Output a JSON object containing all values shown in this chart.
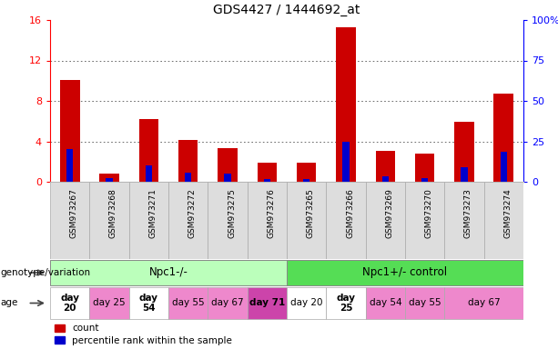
{
  "title": "GDS4427 / 1444692_at",
  "samples": [
    "GSM973267",
    "GSM973268",
    "GSM973271",
    "GSM973272",
    "GSM973275",
    "GSM973276",
    "GSM973265",
    "GSM973266",
    "GSM973269",
    "GSM973270",
    "GSM973273",
    "GSM973274"
  ],
  "count_values": [
    10.1,
    0.8,
    6.2,
    4.1,
    3.3,
    1.9,
    1.9,
    15.3,
    3.1,
    2.8,
    5.9,
    8.7
  ],
  "percentile_values": [
    20.5,
    2.5,
    10.0,
    5.6,
    5.3,
    1.9,
    1.6,
    25.0,
    3.1,
    2.5,
    8.75,
    18.75
  ],
  "ylim_left": [
    0,
    16
  ],
  "ylim_right": [
    0,
    100
  ],
  "yticks_left": [
    0,
    4,
    8,
    12,
    16
  ],
  "ytick_labels_left": [
    "0",
    "4",
    "8",
    "12",
    "16"
  ],
  "yticks_right": [
    0,
    25,
    50,
    75,
    100
  ],
  "ytick_labels_right": [
    "0",
    "25",
    "50",
    "75",
    "100%"
  ],
  "bar_color_count": "#cc0000",
  "bar_color_percentile": "#0000cc",
  "bar_width": 0.5,
  "background_color": "#ffffff",
  "grid_color": "#666666",
  "genotype_groups": [
    {
      "label": "Npc1-/-",
      "start": 0,
      "end": 6,
      "color": "#bbffbb"
    },
    {
      "label": "Npc1+/- control",
      "start": 6,
      "end": 12,
      "color": "#55dd55"
    }
  ],
  "age_groups": [
    {
      "label": "day\n20",
      "start": 0,
      "end": 1,
      "color": "#ffffff",
      "fontsize": 7.5,
      "bold": true
    },
    {
      "label": "day 25",
      "start": 1,
      "end": 2,
      "color": "#ee88cc",
      "fontsize": 7.5,
      "bold": false
    },
    {
      "label": "day\n54",
      "start": 2,
      "end": 3,
      "color": "#ffffff",
      "fontsize": 7.5,
      "bold": true
    },
    {
      "label": "day 55",
      "start": 3,
      "end": 4,
      "color": "#ee88cc",
      "fontsize": 7.5,
      "bold": false
    },
    {
      "label": "day 67",
      "start": 4,
      "end": 5,
      "color": "#ee88cc",
      "fontsize": 7.5,
      "bold": false
    },
    {
      "label": "day 71",
      "start": 5,
      "end": 6,
      "color": "#cc44aa",
      "fontsize": 7.5,
      "bold": true
    },
    {
      "label": "day 20",
      "start": 6,
      "end": 7,
      "color": "#ffffff",
      "fontsize": 7.5,
      "bold": false
    },
    {
      "label": "day\n25",
      "start": 7,
      "end": 8,
      "color": "#ffffff",
      "fontsize": 7.5,
      "bold": true
    },
    {
      "label": "day 54",
      "start": 8,
      "end": 9,
      "color": "#ee88cc",
      "fontsize": 7.5,
      "bold": false
    },
    {
      "label": "day 55",
      "start": 9,
      "end": 10,
      "color": "#ee88cc",
      "fontsize": 7.5,
      "bold": false
    },
    {
      "label": "day 67",
      "start": 10,
      "end": 12,
      "color": "#ee88cc",
      "fontsize": 7.5,
      "bold": false
    }
  ],
  "left_label_genotype": "genotype/variation",
  "left_label_age": "age",
  "tick_fontsize": 8,
  "title_fontsize": 10,
  "sample_tick_fontsize": 6.5
}
